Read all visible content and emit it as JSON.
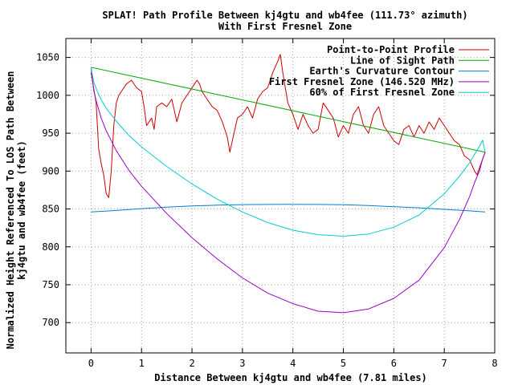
{
  "chart_data": {
    "type": "line",
    "title_line1": "SPLAT! Path Profile Between kj4gtu and wb4fee (111.73° azimuth)",
    "title_line2": "With First Fresnel Zone",
    "xlabel": "Distance Between kj4gtu and wb4fee (7.81 miles)",
    "ylabel_line1": "Normalized Height Referenced To LOS Path Between",
    "ylabel_line2": "kj4gtu and wb4fee (feet)",
    "xlim": [
      -0.5,
      8
    ],
    "ylim": [
      660,
      1075
    ],
    "x_ticks": [
      0,
      1,
      2,
      3,
      4,
      5,
      6,
      7,
      8
    ],
    "y_ticks": [
      700,
      750,
      800,
      850,
      900,
      950,
      1000,
      1050
    ],
    "grid": true,
    "legend_position": "top-right",
    "series": [
      {
        "name": "Point-to-Point Profile",
        "color": "#cc0000",
        "x": [
          0,
          0.1,
          0.15,
          0.2,
          0.25,
          0.3,
          0.35,
          0.4,
          0.45,
          0.5,
          0.55,
          0.6,
          0.7,
          0.8,
          0.9,
          1.0,
          1.05,
          1.1,
          1.2,
          1.25,
          1.3,
          1.4,
          1.5,
          1.6,
          1.7,
          1.8,
          1.9,
          2.0,
          2.05,
          2.1,
          2.15,
          2.2,
          2.3,
          2.4,
          2.5,
          2.6,
          2.7,
          2.75,
          2.8,
          2.9,
          3.0,
          3.1,
          3.2,
          3.3,
          3.4,
          3.5,
          3.6,
          3.7,
          3.75,
          3.8,
          3.9,
          4.0,
          4.1,
          4.2,
          4.3,
          4.4,
          4.5,
          4.6,
          4.7,
          4.8,
          4.9,
          5.0,
          5.1,
          5.2,
          5.3,
          5.4,
          5.5,
          5.6,
          5.7,
          5.8,
          5.9,
          6.0,
          6.1,
          6.2,
          6.3,
          6.4,
          6.5,
          6.6,
          6.7,
          6.8,
          6.9,
          7.0,
          7.1,
          7.2,
          7.3,
          7.4,
          7.5,
          7.6,
          7.65,
          7.7,
          7.81
        ],
        "y": [
          1030,
          990,
          930,
          910,
          895,
          870,
          865,
          900,
          960,
          990,
          1000,
          1005,
          1015,
          1020,
          1010,
          1005,
          985,
          960,
          970,
          955,
          985,
          990,
          985,
          995,
          965,
          990,
          1000,
          1010,
          1015,
          1020,
          1015,
          1005,
          995,
          985,
          980,
          965,
          945,
          925,
          940,
          970,
          975,
          985,
          970,
          995,
          1005,
          1010,
          1030,
          1045,
          1054,
          1030,
          990,
          975,
          955,
          975,
          960,
          950,
          955,
          990,
          980,
          970,
          945,
          960,
          950,
          975,
          985,
          960,
          950,
          975,
          985,
          960,
          950,
          940,
          935,
          955,
          960,
          945,
          960,
          950,
          965,
          955,
          970,
          960,
          950,
          940,
          935,
          920,
          915,
          900,
          895,
          905,
          925
        ]
      },
      {
        "name": "Line of Sight Path",
        "color": "#00aa00",
        "x": [
          0,
          7.81
        ],
        "y": [
          1037,
          925
        ]
      },
      {
        "name": "Earth's Curvature Contour",
        "color": "#0080cc",
        "x": [
          0,
          0.5,
          1,
          1.5,
          2,
          2.5,
          3,
          3.5,
          3.9,
          4.5,
          5,
          5.5,
          6,
          6.5,
          7,
          7.5,
          7.81
        ],
        "y": [
          846,
          848,
          850.5,
          852.5,
          854,
          855,
          855.7,
          856,
          856.1,
          856,
          855.5,
          854.5,
          853,
          851.5,
          849.5,
          847.5,
          846
        ]
      },
      {
        "name": "First Fresnel Zone (146.520 MHz)",
        "color": "#9900cc",
        "x": [
          0,
          0.05,
          0.1,
          0.2,
          0.3,
          0.5,
          0.75,
          1,
          1.5,
          2,
          2.5,
          3,
          3.5,
          4,
          4.5,
          5,
          5.5,
          6,
          6.5,
          7,
          7.3,
          7.5,
          7.6,
          7.7,
          7.76,
          7.81
        ],
        "y": [
          1037,
          1007,
          993,
          970,
          953,
          927,
          901,
          880,
          844,
          812,
          784,
          759,
          739,
          725,
          715,
          713,
          718,
          732,
          756,
          799,
          836,
          866,
          885,
          901,
          916,
          925
        ]
      },
      {
        "name": "60% of First Fresnel Zone",
        "color": "#00cccc",
        "x": [
          0,
          0.05,
          0.1,
          0.2,
          0.3,
          0.5,
          0.75,
          1,
          1.5,
          2,
          2.5,
          3,
          3.5,
          4,
          4.5,
          5,
          5.5,
          6,
          6.5,
          7,
          7.3,
          7.5,
          7.6,
          7.7,
          7.76,
          7.81
        ],
        "y": [
          1037,
          1018,
          1009,
          994,
          983,
          966,
          947,
          932,
          906,
          883,
          863,
          846,
          832,
          822,
          816,
          814,
          817,
          826,
          842,
          870,
          893,
          911,
          922,
          933,
          941,
          925
        ]
      }
    ]
  }
}
